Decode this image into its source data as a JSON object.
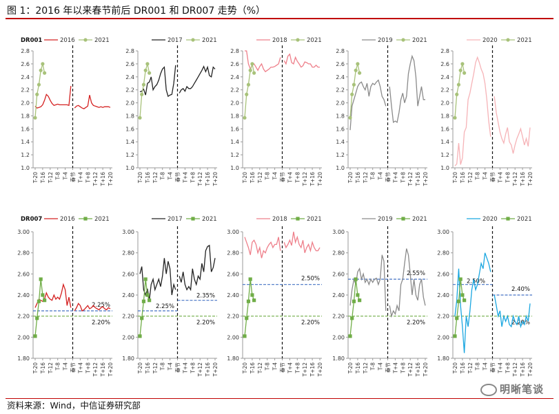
{
  "title": "图 1：2016 年以来春节前后 DR001 和 DR007 走势（%）",
  "source": "资料来源：Wind，中信证券研究部",
  "watermark": "明晰笔谈",
  "colors": {
    "y2016": "#d42020",
    "y2017": "#222222",
    "y2018": "#ee7f8a",
    "y2019": "#8a8a8a",
    "y2020": "#f6b3b7",
    "y2020_dr007": "#19a6e0",
    "y2021": "#70ad47",
    "dr001_2021_marker": "#a8c27a",
    "threshold_blue": "#4472c4",
    "threshold_green": "#70ad47",
    "accent_rule": "#c00000"
  },
  "chart_data": {
    "type": "line",
    "x_categories": [
      "T-20",
      "T-19",
      "T-18",
      "T-17",
      "T-16",
      "T-15",
      "T-14",
      "T-13",
      "T-12",
      "T-11",
      "T-10",
      "T-9",
      "T-8",
      "T-7",
      "T-6",
      "T-5",
      "T-4",
      "T-3",
      "T-2",
      "T-1",
      "春节",
      "T+1",
      "T+2",
      "T+3",
      "T+4",
      "T+5",
      "T+6",
      "T+7",
      "T+8",
      "T+9",
      "T+10",
      "T+11",
      "T+12",
      "T+13",
      "T+14",
      "T+15",
      "T+16",
      "T+17",
      "T+18",
      "T+19",
      "T+20"
    ],
    "x_tick_labels": [
      "T-20",
      "T-16",
      "T-12",
      "T-8",
      "T-4",
      "春节",
      "T+4",
      "T+8",
      "T+12",
      "T+16",
      "T+20"
    ],
    "spring_festival_marker": "春节",
    "rows": [
      {
        "label": "DR001",
        "ylim": [
          1.0,
          2.8
        ],
        "yticks": [
          "1.0",
          "1.2",
          "1.4",
          "1.6",
          "1.8",
          "2.0",
          "2.2",
          "2.4",
          "2.6",
          "2.8"
        ],
        "ytick_values": [
          1.0,
          1.2,
          1.4,
          1.6,
          1.8,
          2.0,
          2.2,
          2.4,
          2.6,
          2.8
        ],
        "panels": [
          {
            "legend": [
              "2016",
              "2021"
            ],
            "series_year": "2016",
            "color_key": "y2016",
            "values": [
              1.95,
              1.92,
              1.93,
              1.94,
              1.97,
              2.04,
              2.13,
              2.1,
              2.04,
              1.99,
              1.96,
              1.97,
              1.98,
              1.97,
              1.97,
              1.97,
              1.97,
              1.97,
              1.96,
              2.26,
              null,
              1.92,
              1.95,
              1.96,
              1.94,
              1.92,
              1.91,
              1.93,
              1.95,
              2.12,
              2.0,
              1.96,
              1.95,
              1.94,
              1.93,
              1.94,
              1.93,
              1.94,
              1.94,
              1.94,
              1.93
            ],
            "y2021": [
              1.77,
              2.13,
              2.28,
              2.5,
              2.6,
              2.46
            ]
          },
          {
            "legend": [
              "2017",
              "2021"
            ],
            "series_year": "2017",
            "color_key": "y2017",
            "values": [
              2.17,
              2.18,
              2.21,
              2.12,
              2.3,
              2.32,
              2.4,
              2.2,
              2.25,
              2.28,
              2.35,
              2.45,
              2.52,
              2.55,
              2.2,
              2.1,
              2.12,
              2.13,
              2.3,
              2.58,
              null,
              2.15,
              2.2,
              2.22,
              2.18,
              2.25,
              2.22,
              2.22,
              2.25,
              2.3,
              2.35,
              2.4,
              2.45,
              2.5,
              2.56,
              2.48,
              2.55,
              2.42,
              2.4,
              2.55,
              2.52
            ],
            "y2021": [
              1.77,
              2.13,
              2.28,
              2.5,
              2.6,
              2.46
            ]
          },
          {
            "legend": [
              "2018",
              "2021"
            ],
            "series_year": "2018",
            "color_key": "y2018",
            "values": [
              2.8,
              2.8,
              2.6,
              2.52,
              2.58,
              2.6,
              2.55,
              2.5,
              2.56,
              2.6,
              2.52,
              2.48,
              2.5,
              2.52,
              2.55,
              2.55,
              2.56,
              2.58,
              2.6,
              2.7,
              null,
              2.65,
              2.6,
              2.72,
              2.75,
              2.62,
              2.6,
              2.7,
              2.64,
              2.6,
              2.55,
              2.57,
              2.63,
              2.62,
              2.6,
              2.6,
              2.55,
              2.55,
              2.58,
              2.55,
              2.55
            ],
            "y2021": [
              1.77,
              2.13,
              2.28,
              2.5,
              2.6,
              2.46
            ]
          },
          {
            "legend": [
              "2019",
              "2021"
            ],
            "series_year": "2019",
            "color_key": "y2019",
            "values": [
              1.58,
              1.95,
              2.05,
              2.15,
              2.25,
              2.3,
              2.32,
              2.25,
              2.2,
              2.3,
              2.1,
              2.25,
              2.3,
              2.28,
              2.32,
              2.35,
              2.25,
              2.1,
              2.05,
              1.95,
              null,
              2.25,
              1.95,
              1.7,
              1.72,
              1.7,
              1.85,
              2.05,
              2.15,
              2.0,
              2.1,
              2.45,
              2.6,
              2.72,
              2.65,
              2.4,
              1.95,
              2.1,
              2.25,
              2.05,
              2.05
            ],
            "y2021": [
              1.77,
              2.13,
              2.28,
              2.5,
              2.6,
              2.46
            ]
          },
          {
            "legend": [
              "2020",
              "2021"
            ],
            "series_year": "2020",
            "color_key": "y2020",
            "values": [
              1.03,
              1.06,
              1.38,
              1.05,
              1.15,
              1.55,
              1.62,
              2.05,
              2.15,
              2.3,
              2.45,
              2.62,
              2.7,
              2.62,
              2.52,
              2.45,
              2.3,
              2.05,
              1.72,
              1.48,
              null,
              2.1,
              1.85,
              1.7,
              1.55,
              1.45,
              1.38,
              1.52,
              1.62,
              1.4,
              1.35,
              1.22,
              1.35,
              1.45,
              1.52,
              1.6,
              1.48,
              1.35,
              1.45,
              1.33,
              1.62
            ],
            "y2021": [
              1.77,
              2.13,
              2.28,
              2.5,
              2.6,
              2.46
            ]
          }
        ]
      },
      {
        "label": "DR007",
        "ylim": [
          1.8,
          3.0
        ],
        "yticks": [
          "1.80",
          "2.00",
          "2.20",
          "2.40",
          "2.60",
          "2.80",
          "3.00"
        ],
        "ytick_values": [
          1.8,
          2.0,
          2.2,
          2.4,
          2.6,
          2.8,
          3.0
        ],
        "panels": [
          {
            "legend": [
              "2016",
              "2021"
            ],
            "series_year": "2016",
            "color_key": "y2016",
            "values": [
              2.28,
              2.32,
              2.36,
              2.35,
              2.34,
              2.36,
              2.42,
              2.38,
              2.36,
              2.35,
              2.4,
              2.36,
              2.38,
              2.36,
              2.42,
              2.5,
              2.45,
              2.3,
              2.38,
              2.28,
              null,
              2.25,
              2.28,
              2.32,
              2.3,
              2.25,
              2.26,
              2.28,
              2.3,
              2.27,
              2.28,
              2.3,
              2.28,
              2.27,
              2.26,
              2.28,
              2.29,
              2.27,
              2.26,
              2.28,
              2.27
            ],
            "y2021": [
              2.01,
              2.18,
              2.34,
              2.55,
              2.4,
              2.35
            ],
            "blue_line": 2.25,
            "blue_label": "2.25%",
            "green_line": 2.2,
            "green_label": "2.20%"
          },
          {
            "legend": [
              "2017",
              "2021"
            ],
            "series_year": "2017",
            "color_key": "y2017",
            "values": [
              2.6,
              2.67,
              2.45,
              2.4,
              2.46,
              2.35,
              2.5,
              2.55,
              2.45,
              2.5,
              2.55,
              2.48,
              2.58,
              2.75,
              2.6,
              2.72,
              2.65,
              2.4,
              2.5,
              2.45,
              null,
              2.58,
              2.52,
              2.62,
              2.5,
              2.45,
              2.48,
              2.45,
              2.65,
              2.55,
              2.5,
              2.58,
              2.55,
              2.7,
              2.62,
              2.82,
              2.86,
              2.87,
              2.62,
              2.66,
              2.75
            ],
            "y2021": [
              2.01,
              2.18,
              2.34,
              2.55,
              2.4,
              2.35
            ],
            "blue_line": 2.35,
            "blue_label": "2.35%",
            "green_line": 2.2,
            "green_label": "2.20%"
          },
          {
            "legend": [
              "2018",
              "2021"
            ],
            "series_year": "2018",
            "color_key": "y2018",
            "values": [
              2.95,
              2.9,
              2.85,
              2.78,
              2.9,
              2.92,
              2.88,
              2.8,
              2.85,
              2.75,
              2.82,
              2.8,
              2.85,
              2.88,
              2.9,
              2.85,
              2.88,
              2.88,
              2.95,
              2.82,
              null,
              2.9,
              2.85,
              2.88,
              2.92,
              2.87,
              3.0,
              2.9,
              2.95,
              2.88,
              2.85,
              2.92,
              2.8,
              2.85,
              2.88,
              2.82,
              2.9,
              2.85,
              2.82,
              2.82,
              2.85
            ],
            "y2021": [
              2.01,
              2.18,
              2.34,
              2.55,
              2.4,
              2.35
            ],
            "blue_line": 2.5,
            "blue_label": "2.50%",
            "green_line": 2.2,
            "green_label": "2.20%"
          },
          {
            "legend": [
              "2019",
              "2021"
            ],
            "series_year": "2019",
            "color_key": "y2019",
            "values": [
              2.3,
              2.45,
              2.55,
              2.5,
              2.62,
              2.65,
              2.55,
              2.6,
              2.52,
              2.55,
              2.5,
              2.55,
              2.52,
              2.55,
              2.56,
              2.5,
              2.55,
              2.78,
              2.72,
              2.25,
              null,
              2.3,
              2.2,
              2.25,
              2.22,
              2.3,
              2.25,
              2.5,
              2.55,
              2.7,
              2.84,
              2.78,
              2.6,
              2.4,
              2.55,
              2.4,
              2.35,
              2.5,
              2.55,
              2.38,
              2.3
            ],
            "y2021": [
              2.01,
              2.18,
              2.34,
              2.55,
              2.4,
              2.35
            ],
            "blue_line": 2.55,
            "blue_label": "2.55%",
            "green_line": 2.2,
            "green_label": "2.20%"
          },
          {
            "legend": [
              "2020",
              "2021"
            ],
            "series_year": "2020",
            "color_key": "y2020_dr007",
            "values": [
              2.2,
              2.35,
              2.65,
              2.3,
              2.1,
              1.85,
              2.2,
              2.1,
              2.25,
              2.45,
              2.55,
              2.45,
              2.5,
              2.6,
              2.7,
              2.65,
              2.8,
              2.75,
              2.7,
              2.62,
              null,
              2.4,
              2.3,
              2.2,
              2.25,
              2.1,
              2.2,
              2.15,
              2.2,
              2.12,
              2.1,
              2.2,
              2.15,
              2.12,
              2.2,
              2.1,
              2.15,
              2.12,
              2.2,
              2.15,
              2.32
            ],
            "y2021": [
              2.01,
              2.18,
              2.34,
              2.55,
              2.4,
              2.35
            ],
            "blue_line": 2.5,
            "blue_label": "2.50%",
            "blue_line2": 2.4,
            "blue_label2": "2.40%",
            "green_line": 2.2,
            "green_label": "2.20%"
          }
        ]
      }
    ]
  }
}
